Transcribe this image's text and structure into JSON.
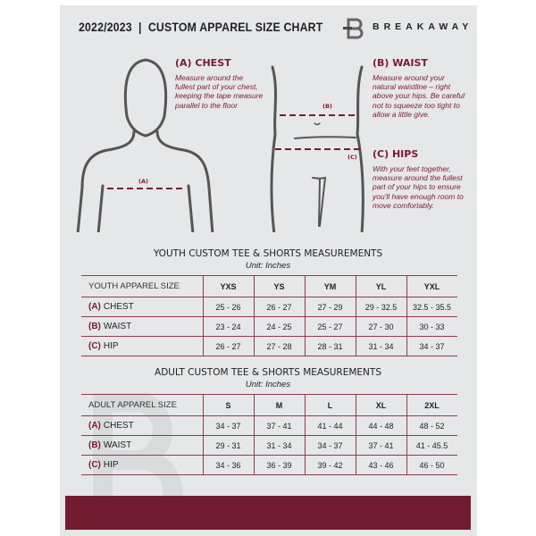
{
  "header": {
    "title": "2022/2023  |  CUSTOM APPAREL SIZE CHART",
    "brand": "BREAKAWAY"
  },
  "measures": {
    "chest": {
      "label": "(A) CHEST",
      "desc": "Measure around the fullest part of your chest, keeping the tape measure parallel to the floor",
      "mark": "(A)"
    },
    "waist": {
      "label": "(B) WAIST",
      "desc": "Measure around your natural waistline – right above your hips. Be careful not to squeeze too tight to allow a little give.",
      "mark": "(B)"
    },
    "hips": {
      "label": "(C) HIPS",
      "desc": "With your feet together, measure around the fullest part of your hips to ensure you'll have enough room to move comfortably.",
      "mark": "(C)"
    }
  },
  "colors": {
    "accent": "#721c32",
    "background": "#e6e7e9"
  },
  "youth": {
    "title": "YOUTH CUSTOM TEE & SHORTS MEASUREMENTS",
    "unit": "Unit: Inches",
    "header": "YOUTH APPAREL SIZE",
    "sizes": [
      "YXS",
      "YS",
      "YM",
      "YL",
      "YXL"
    ],
    "rows": [
      {
        "code": "(A)",
        "name": "CHEST",
        "values": [
          "25 - 26",
          "26 - 27",
          "27 - 29",
          "29 - 32.5",
          "32.5 - 35.5"
        ]
      },
      {
        "code": "(B)",
        "name": "WAIST",
        "values": [
          "23 - 24",
          "24 - 25",
          "25 - 27",
          "27 - 30",
          "30 - 33"
        ]
      },
      {
        "code": "(C)",
        "name": "HIP",
        "values": [
          "26 - 27",
          "27 - 28",
          "28 - 31",
          "31 - 34",
          "34 - 37"
        ]
      }
    ]
  },
  "adult": {
    "title": "ADULT CUSTOM TEE & SHORTS MEASUREMENTS",
    "unit": "Unit: Inches",
    "header": "ADULT APPAREL SIZE",
    "sizes": [
      "S",
      "M",
      "L",
      "XL",
      "2XL"
    ],
    "rows": [
      {
        "code": "(A)",
        "name": "CHEST",
        "values": [
          "34 - 37",
          "37 - 41",
          "41 - 44",
          "44 - 48",
          "48 - 52"
        ]
      },
      {
        "code": "(B)",
        "name": "WAIST",
        "values": [
          "29 - 31",
          "31 - 34",
          "34 - 37",
          "37 - 41",
          "41 - 45.5"
        ]
      },
      {
        "code": "(C)",
        "name": "HIP",
        "values": [
          "34 - 36",
          "36 - 39",
          "39 - 42",
          "43 - 46",
          "46 - 50"
        ]
      }
    ]
  }
}
